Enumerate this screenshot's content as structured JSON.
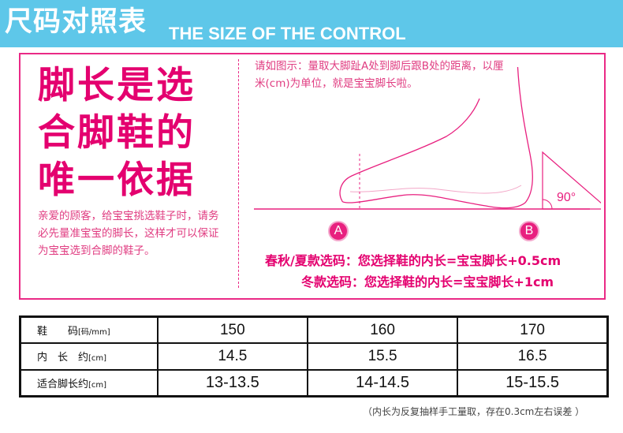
{
  "header": {
    "title": "尺码对照表",
    "subtitle": "THE SIZE OF THE CONTROL"
  },
  "left": {
    "headline_lines": [
      "脚长是选",
      "合脚鞋的",
      "唯一依据"
    ],
    "note": "亲爱的顾客，给宝宝挑选鞋子时，请务必先量准宝宝的脚长，这样才可以保证为宝宝选到合脚的鞋子。"
  },
  "diagram": {
    "instruction": "请如图示：量取大脚趾A处到脚后跟B处的距离，以厘米(cm)为单位，就是宝宝脚长啦。",
    "point_a": "A",
    "point_b": "B",
    "angle_label": "90°"
  },
  "rules": {
    "spring_autumn_summer": "春秋/夏款选码：您选择鞋的内长=宝宝脚长+0.5cm",
    "winter": "冬款选码：您选择鞋的内长=宝宝脚长+1cm"
  },
  "table": {
    "rows": [
      {
        "label_main": "鞋　　码",
        "label_unit": "[码/mm]",
        "values": [
          "150",
          "160",
          "170"
        ]
      },
      {
        "label_main": "内　长　约",
        "label_unit": "[cm]",
        "values": [
          "14.5",
          "15.5",
          "16.5"
        ]
      },
      {
        "label_main": "适合脚长约",
        "label_unit": "[cm]",
        "values": [
          "13-13.5",
          "14-14.5",
          "15-15.5"
        ]
      }
    ]
  },
  "footnote": "（内长为反复抽样手工量取，存在0.3cm左右误差 ）",
  "colors": {
    "header_bg": "#5ec7e9",
    "accent_pink": "#e4006f",
    "border_pink": "#ea2a86"
  }
}
